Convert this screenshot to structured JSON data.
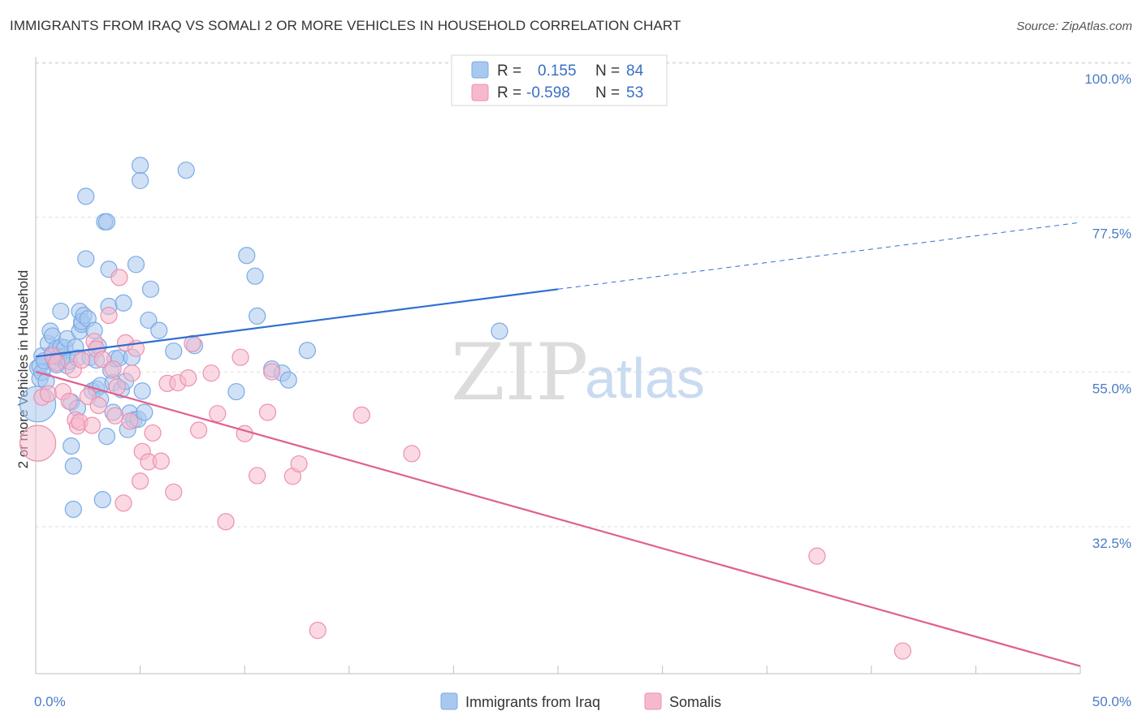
{
  "title": "IMMIGRANTS FROM IRAQ VS SOMALI 2 OR MORE VEHICLES IN HOUSEHOLD CORRELATION CHART",
  "source": "Source: ZipAtlas.com",
  "watermark": {
    "zip": "ZIP",
    "atlas": "atlas"
  },
  "legend_box": {
    "rows": [
      {
        "r_label": "R =",
        "r_value": "0.155",
        "n_label": "N =",
        "n_value": "84",
        "color": "#a9c8ef"
      },
      {
        "r_label": "R =",
        "r_value": "-0.598",
        "n_label": "N =",
        "n_value": "53",
        "color": "#f6b9cc"
      }
    ]
  },
  "bottom_legend": [
    {
      "label": "Immigrants from Iraq",
      "color": "#a9c8ef"
    },
    {
      "label": "Somalis",
      "color": "#f6b9cc"
    }
  ],
  "chart_data": {
    "type": "scatter",
    "title": "IMMIGRANTS FROM IRAQ VS SOMALI 2 OR MORE VEHICLES IN HOUSEHOLD CORRELATION CHART",
    "xlabel": "",
    "ylabel": "2 or more Vehicles in Household",
    "xlim": [
      0,
      50
    ],
    "ylim": [
      10,
      103
    ],
    "x_tick_labels": [
      {
        "value": 0,
        "label": "0.0%"
      },
      {
        "value": 50,
        "label": "50.0%"
      }
    ],
    "y_tick_labels": [
      {
        "value": 100,
        "label": "100.0%"
      },
      {
        "value": 77.5,
        "label": "77.5%"
      },
      {
        "value": 55,
        "label": "55.0%"
      },
      {
        "value": 32.5,
        "label": "32.5%"
      }
    ],
    "y_gridlines": [
      100,
      77.5,
      55,
      32.5
    ],
    "x_minor_ticks": [
      0,
      5,
      10,
      15,
      20,
      25,
      30,
      35,
      40,
      45,
      50
    ],
    "grid": true,
    "legend_position": "top-center",
    "series": [
      {
        "name": "Immigrants from Iraq",
        "color": "#7aaae6",
        "fill": "#a9c8ef",
        "trend": {
          "x0": 0,
          "y0": 59.6,
          "x1": 25,
          "y1": 69.4,
          "dashed_to_x": 50,
          "dashed_to_y": 79.1,
          "line_color": "#2f6fd0"
        },
        "points": [
          [
            0.1,
            52.7,
            22
          ],
          [
            0.1,
            58.0,
            10
          ],
          [
            0.2,
            58.2,
            10
          ],
          [
            0.2,
            56.4,
            10
          ],
          [
            0.3,
            57.3,
            10
          ],
          [
            0.3,
            59.7,
            10
          ],
          [
            0.4,
            59.0,
            10
          ],
          [
            0.5,
            56.0,
            10
          ],
          [
            0.6,
            61.5,
            10
          ],
          [
            0.7,
            63.3,
            10
          ],
          [
            0.8,
            60.0,
            10
          ],
          [
            0.8,
            62.6,
            10
          ],
          [
            0.9,
            59.0,
            10
          ],
          [
            1.0,
            60.8,
            10
          ],
          [
            1.0,
            58.4,
            10
          ],
          [
            1.1,
            59.5,
            10
          ],
          [
            1.2,
            61.0,
            10
          ],
          [
            1.2,
            66.2,
            10
          ],
          [
            1.3,
            59.6,
            10
          ],
          [
            1.4,
            60.9,
            10
          ],
          [
            1.5,
            58.3,
            10
          ],
          [
            1.5,
            62.2,
            10
          ],
          [
            1.6,
            58.9,
            10
          ],
          [
            1.7,
            53.0,
            10
          ],
          [
            1.7,
            46.6,
            10
          ],
          [
            1.8,
            43.7,
            10
          ],
          [
            1.8,
            37.4,
            10
          ],
          [
            1.9,
            61.0,
            10
          ],
          [
            2.0,
            52.1,
            10
          ],
          [
            2.0,
            59.4,
            10
          ],
          [
            2.1,
            63.3,
            10
          ],
          [
            2.1,
            66.2,
            10
          ],
          [
            2.2,
            64.3,
            10
          ],
          [
            2.2,
            64.7,
            10
          ],
          [
            2.3,
            65.6,
            10
          ],
          [
            2.4,
            73.8,
            10
          ],
          [
            2.4,
            82.9,
            10
          ],
          [
            2.5,
            65.1,
            10
          ],
          [
            2.6,
            59.5,
            10
          ],
          [
            2.7,
            54.6,
            10
          ],
          [
            2.8,
            63.4,
            10
          ],
          [
            2.9,
            59.1,
            10
          ],
          [
            2.9,
            54.9,
            10
          ],
          [
            3.0,
            61.1,
            10
          ],
          [
            3.1,
            55.4,
            10
          ],
          [
            3.1,
            53.4,
            10
          ],
          [
            3.2,
            38.8,
            10
          ],
          [
            3.3,
            79.2,
            10
          ],
          [
            3.4,
            79.2,
            10
          ],
          [
            3.4,
            48.0,
            10
          ],
          [
            3.5,
            72.3,
            10
          ],
          [
            3.5,
            66.9,
            10
          ],
          [
            3.6,
            57.6,
            10
          ],
          [
            3.7,
            55.8,
            10
          ],
          [
            3.7,
            51.5,
            10
          ],
          [
            3.8,
            59.3,
            10
          ],
          [
            4.0,
            59.4,
            10
          ],
          [
            4.1,
            54.8,
            10
          ],
          [
            4.2,
            67.4,
            10
          ],
          [
            4.3,
            56.0,
            10
          ],
          [
            4.4,
            49.0,
            10
          ],
          [
            4.5,
            51.4,
            10
          ],
          [
            4.6,
            59.5,
            10
          ],
          [
            4.7,
            50.4,
            10
          ],
          [
            4.8,
            73.0,
            10
          ],
          [
            4.9,
            50.5,
            10
          ],
          [
            5.0,
            87.4,
            10
          ],
          [
            5.0,
            85.2,
            10
          ],
          [
            5.1,
            54.6,
            10
          ],
          [
            5.2,
            51.5,
            10
          ],
          [
            5.4,
            64.9,
            10
          ],
          [
            5.5,
            69.4,
            10
          ],
          [
            5.9,
            63.4,
            10
          ],
          [
            6.6,
            60.4,
            10
          ],
          [
            7.2,
            86.7,
            10
          ],
          [
            7.6,
            61.2,
            10
          ],
          [
            9.6,
            54.5,
            10
          ],
          [
            10.1,
            74.3,
            10
          ],
          [
            10.5,
            71.3,
            10
          ],
          [
            10.6,
            65.5,
            10
          ],
          [
            11.3,
            57.8,
            10
          ],
          [
            11.8,
            57.2,
            10
          ],
          [
            12.1,
            56.2,
            10
          ],
          [
            13.0,
            60.5,
            10
          ],
          [
            22.2,
            63.3,
            10
          ]
        ]
      },
      {
        "name": "Somalis",
        "color": "#ee8fae",
        "fill": "#f6b9cc",
        "trend": {
          "x0": 0,
          "y0": 57.4,
          "x1": 50,
          "y1": 14.6,
          "line_color": "#e0608f"
        },
        "points": [
          [
            0.1,
            47.0,
            22
          ],
          [
            0.3,
            53.7,
            10
          ],
          [
            0.6,
            54.2,
            10
          ],
          [
            0.8,
            59.7,
            10
          ],
          [
            1.0,
            58.7,
            10
          ],
          [
            1.3,
            54.5,
            10
          ],
          [
            1.6,
            53.1,
            10
          ],
          [
            1.8,
            57.7,
            10
          ],
          [
            1.9,
            50.4,
            10
          ],
          [
            2.0,
            49.5,
            10
          ],
          [
            2.1,
            50.1,
            10
          ],
          [
            2.2,
            59.1,
            10
          ],
          [
            2.5,
            53.8,
            10
          ],
          [
            2.7,
            49.6,
            10
          ],
          [
            2.8,
            61.8,
            10
          ],
          [
            2.9,
            60.7,
            10
          ],
          [
            3.0,
            52.5,
            10
          ],
          [
            3.2,
            59.2,
            10
          ],
          [
            3.5,
            65.6,
            10
          ],
          [
            3.7,
            57.8,
            10
          ],
          [
            3.8,
            51.0,
            10
          ],
          [
            3.9,
            55.2,
            10
          ],
          [
            4.0,
            71.1,
            10
          ],
          [
            4.2,
            38.3,
            10
          ],
          [
            4.3,
            61.6,
            10
          ],
          [
            4.5,
            50.2,
            10
          ],
          [
            4.6,
            57.2,
            10
          ],
          [
            4.8,
            60.8,
            10
          ],
          [
            5.0,
            41.5,
            10
          ],
          [
            5.1,
            45.8,
            10
          ],
          [
            5.4,
            44.3,
            10
          ],
          [
            5.6,
            48.5,
            10
          ],
          [
            6.0,
            44.4,
            10
          ],
          [
            6.3,
            55.7,
            10
          ],
          [
            6.6,
            39.9,
            10
          ],
          [
            6.8,
            55.8,
            10
          ],
          [
            7.3,
            56.5,
            10
          ],
          [
            7.5,
            61.5,
            10
          ],
          [
            7.8,
            48.9,
            10
          ],
          [
            8.4,
            57.2,
            10
          ],
          [
            8.7,
            51.3,
            10
          ],
          [
            9.1,
            35.6,
            10
          ],
          [
            9.8,
            59.5,
            10
          ],
          [
            10.0,
            48.4,
            10
          ],
          [
            10.6,
            42.3,
            10
          ],
          [
            11.1,
            51.5,
            10
          ],
          [
            11.3,
            57.4,
            10
          ],
          [
            12.3,
            42.2,
            10
          ],
          [
            12.6,
            44.0,
            10
          ],
          [
            13.5,
            19.8,
            10
          ],
          [
            15.6,
            51.1,
            10
          ],
          [
            18.0,
            45.5,
            10
          ],
          [
            37.4,
            30.6,
            10
          ],
          [
            41.5,
            16.8,
            10
          ]
        ]
      }
    ]
  }
}
